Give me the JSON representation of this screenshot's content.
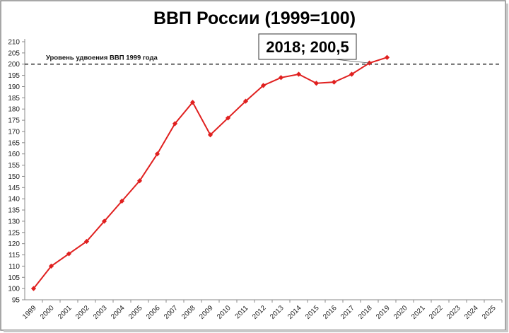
{
  "chart_data": {
    "type": "line",
    "title": "ВВП России (1999=100)",
    "categories": [
      "1999",
      "2000",
      "2001",
      "2002",
      "2003",
      "2004",
      "2005",
      "2006",
      "2007",
      "2008",
      "2009",
      "2010",
      "2011",
      "2012",
      "2013",
      "2014",
      "2015",
      "2016",
      "2017",
      "2018",
      "2019",
      "2020",
      "2021",
      "2022",
      "2023",
      "2024",
      "2025"
    ],
    "series": [
      {
        "name": "ВВП",
        "color": "#e0201f",
        "values": [
          100,
          110,
          115.5,
          121,
          130,
          139,
          148,
          160,
          173.5,
          183,
          168.5,
          176,
          183.5,
          190.5,
          194,
          195.5,
          191.5,
          192,
          195.5,
          200.5,
          203,
          null,
          null,
          null,
          null,
          null,
          null
        ]
      }
    ],
    "ylim": [
      95,
      210
    ],
    "yticks": [
      95,
      100,
      105,
      110,
      115,
      120,
      125,
      130,
      135,
      140,
      145,
      150,
      155,
      160,
      165,
      170,
      175,
      180,
      185,
      190,
      195,
      200,
      205,
      210
    ],
    "grid": false,
    "reference_line": {
      "value": 200,
      "label": "Уровень удвоения ВВП 1999 года"
    },
    "annotation": {
      "text": "2018; 200,5",
      "x": "2018",
      "y": 200.5
    }
  }
}
